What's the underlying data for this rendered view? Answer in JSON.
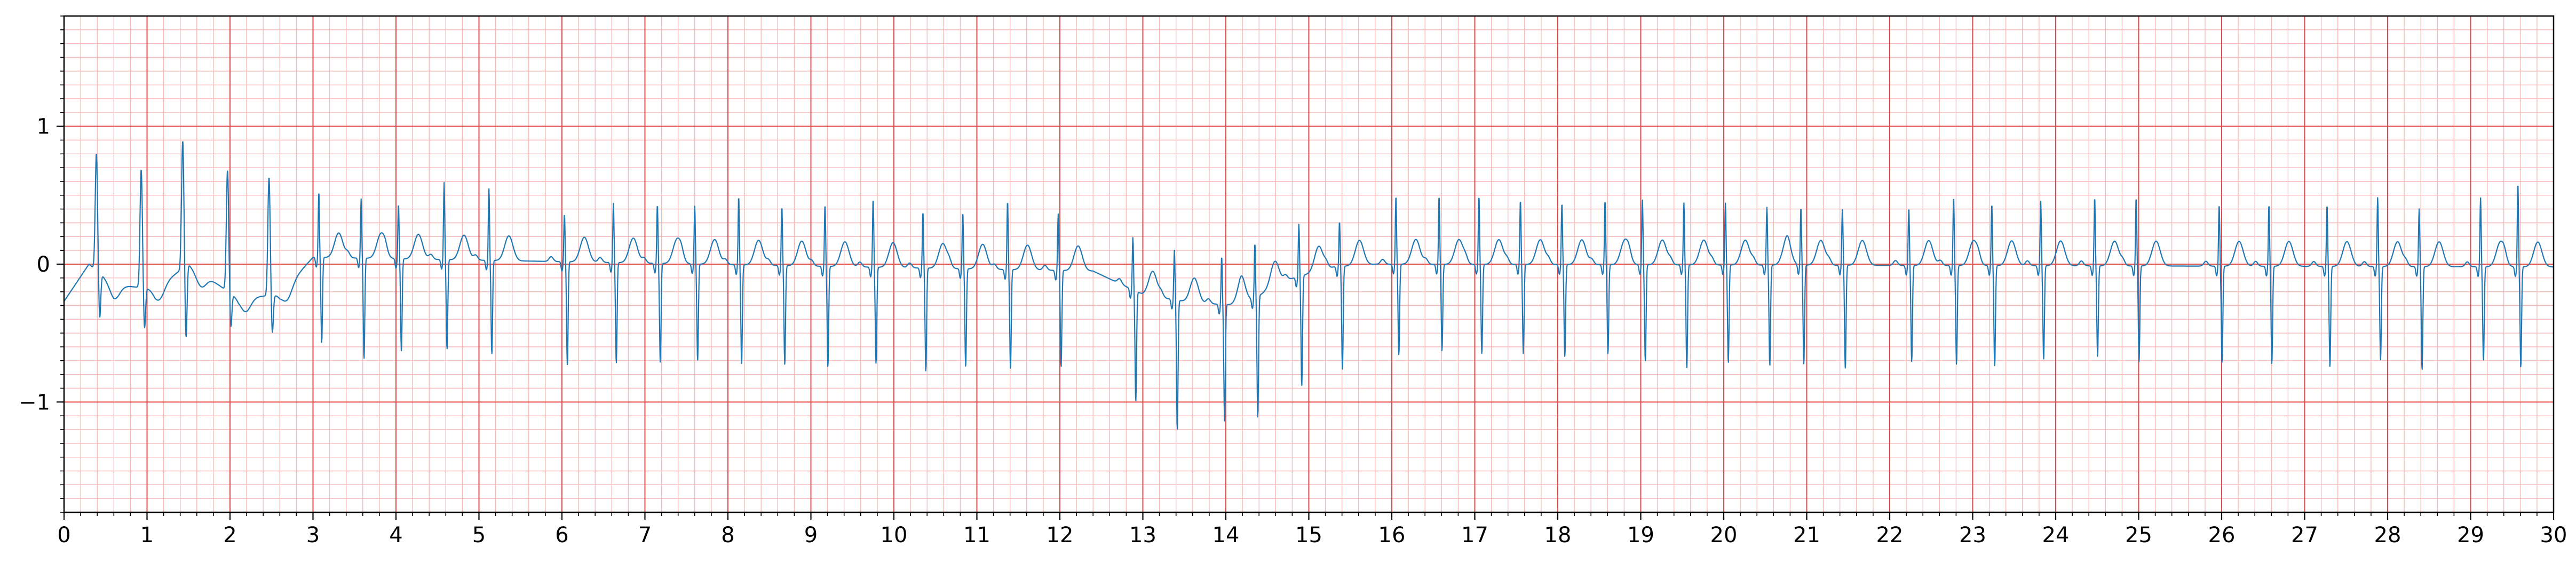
{
  "chart_data": {
    "type": "line",
    "title": "",
    "xlabel": "",
    "ylabel": "",
    "xlim": [
      0,
      30
    ],
    "ylim": [
      -1.8,
      1.8
    ],
    "x_ticks": [
      0,
      1,
      2,
      3,
      4,
      5,
      6,
      7,
      8,
      9,
      10,
      11,
      12,
      13,
      14,
      15,
      16,
      17,
      18,
      19,
      20,
      21,
      22,
      23,
      24,
      25,
      26,
      27,
      28,
      29,
      30
    ],
    "y_ticks": [
      -1,
      0,
      1
    ],
    "y_tick_labels": [
      "−1",
      "0",
      "1"
    ],
    "x_minor_step": 0.2,
    "y_minor_step": 0.1,
    "grid": true,
    "grid_major_color": "#e04a4a",
    "grid_minor_color": "#f8b8b8",
    "line_color": "#1f77b4",
    "series": [
      {
        "name": "",
        "segment_a": {
          "t_end": 3.0,
          "beats": [
            {
              "t": 0.39,
              "amp": 0.85,
              "s": -0.33
            },
            {
              "t": 0.93,
              "amp": 0.86,
              "s": -0.3
            },
            {
              "t": 1.43,
              "amp": 0.93,
              "s": -0.53
            },
            {
              "t": 1.97,
              "amp": 0.88,
              "s": -0.25
            },
            {
              "t": 2.47,
              "amp": 0.86,
              "s": -0.28
            }
          ],
          "baseline": [
            [
              0.0,
              -0.27
            ],
            [
              0.3,
              0.0
            ],
            [
              0.6,
              -0.15
            ],
            [
              1.1,
              -0.18
            ],
            [
              1.5,
              0.0
            ],
            [
              2.1,
              -0.25
            ],
            [
              2.6,
              -0.22
            ],
            [
              3.0,
              0.05
            ]
          ]
        },
        "segment_b": {
          "beats": [
            {
              "t": 3.07,
              "r": 0.48,
              "s": -0.62
            },
            {
              "t": 3.58,
              "r": 0.43,
              "s": -0.73
            },
            {
              "t": 4.03,
              "r": 0.4,
              "s": -0.67
            },
            {
              "t": 4.58,
              "r": 0.56,
              "s": -0.65
            },
            {
              "t": 5.12,
              "r": 0.52,
              "s": -0.68
            },
            {
              "t": 6.03,
              "r": 0.35,
              "s": -0.75
            },
            {
              "t": 6.62,
              "r": 0.43,
              "s": -0.73
            },
            {
              "t": 7.15,
              "r": 0.43,
              "s": -0.72
            },
            {
              "t": 7.6,
              "r": 0.42,
              "s": -0.7
            },
            {
              "t": 8.13,
              "r": 0.5,
              "s": -0.72
            },
            {
              "t": 8.65,
              "r": 0.43,
              "s": -0.72
            },
            {
              "t": 9.17,
              "r": 0.45,
              "s": -0.73
            },
            {
              "t": 9.75,
              "r": 0.5,
              "s": -0.7
            },
            {
              "t": 10.35,
              "r": 0.41,
              "s": -0.75
            },
            {
              "t": 10.83,
              "r": 0.41,
              "s": -0.71
            },
            {
              "t": 11.37,
              "r": 0.5,
              "s": -0.72
            },
            {
              "t": 11.98,
              "r": 0.41,
              "s": -0.7
            },
            {
              "t": 12.88,
              "r": 0.38,
              "s": -0.8
            },
            {
              "t": 13.38,
              "r": 0.36,
              "s": -0.94
            },
            {
              "t": 13.95,
              "r": 0.35,
              "s": -0.85
            },
            {
              "t": 14.35,
              "r": 0.4,
              "s": -0.88
            },
            {
              "t": 14.88,
              "r": 0.38,
              "s": -0.8
            },
            {
              "t": 15.37,
              "r": 0.33,
              "s": -0.75
            },
            {
              "t": 16.05,
              "r": 0.5,
              "s": -0.66
            },
            {
              "t": 16.57,
              "r": 0.5,
              "s": -0.63
            },
            {
              "t": 17.05,
              "r": 0.5,
              "s": -0.65
            },
            {
              "t": 17.55,
              "r": 0.47,
              "s": -0.65
            },
            {
              "t": 18.05,
              "r": 0.45,
              "s": -0.67
            },
            {
              "t": 18.57,
              "r": 0.47,
              "s": -0.65
            },
            {
              "t": 19.02,
              "r": 0.47,
              "s": -0.7
            },
            {
              "t": 19.52,
              "r": 0.45,
              "s": -0.75
            },
            {
              "t": 20.02,
              "r": 0.45,
              "s": -0.71
            },
            {
              "t": 20.52,
              "r": 0.42,
              "s": -0.73
            },
            {
              "t": 20.93,
              "r": 0.42,
              "s": -0.72
            },
            {
              "t": 21.43,
              "r": 0.42,
              "s": -0.75
            },
            {
              "t": 22.23,
              "r": 0.42,
              "s": -0.7
            },
            {
              "t": 22.77,
              "r": 0.5,
              "s": -0.72
            },
            {
              "t": 23.23,
              "r": 0.45,
              "s": -0.73
            },
            {
              "t": 23.82,
              "r": 0.47,
              "s": -0.68
            },
            {
              "t": 24.47,
              "r": 0.5,
              "s": -0.66
            },
            {
              "t": 24.97,
              "r": 0.5,
              "s": -0.7
            },
            {
              "t": 25.97,
              "r": 0.45,
              "s": -0.7
            },
            {
              "t": 26.57,
              "r": 0.45,
              "s": -0.71
            },
            {
              "t": 27.27,
              "r": 0.45,
              "s": -0.73
            },
            {
              "t": 27.88,
              "r": 0.5,
              "s": -0.68
            },
            {
              "t": 28.38,
              "r": 0.42,
              "s": -0.75
            },
            {
              "t": 29.12,
              "r": 0.5,
              "s": -0.68
            },
            {
              "t": 29.57,
              "r": 0.61,
              "s": -0.73
            }
          ],
          "baseline": [
            [
              3.0,
              0.05
            ],
            [
              12.4,
              -0.05
            ],
            [
              13.0,
              -0.22
            ],
            [
              13.6,
              -0.28
            ],
            [
              14.2,
              -0.3
            ],
            [
              14.7,
              -0.12
            ],
            [
              15.3,
              -0.02
            ],
            [
              15.8,
              0.0
            ],
            [
              30.0,
              -0.02
            ]
          ]
        }
      }
    ]
  }
}
